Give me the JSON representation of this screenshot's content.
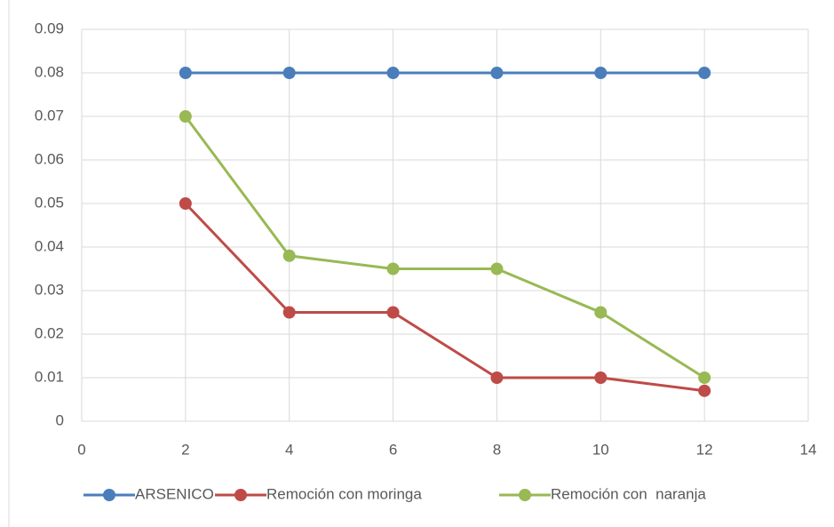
{
  "chart_data": {
    "type": "line",
    "x": [
      2,
      4,
      6,
      8,
      10,
      12
    ],
    "series": [
      {
        "name": "ARSENICO",
        "color": "#4a7ebb",
        "values": [
          0.08,
          0.08,
          0.08,
          0.08,
          0.08,
          0.08
        ]
      },
      {
        "name": "Remoción con moringa",
        "color": "#be4b48",
        "values": [
          0.05,
          0.025,
          0.025,
          0.01,
          0.01,
          0.007
        ]
      },
      {
        "name": "Remoción con  naranja",
        "color": "#98b954",
        "values": [
          0.07,
          0.038,
          0.035,
          0.035,
          0.025,
          0.01
        ]
      }
    ],
    "xlim": [
      0,
      14
    ],
    "xticks": [
      0,
      2,
      4,
      6,
      8,
      10,
      12,
      14
    ],
    "ylim": [
      0,
      0.09
    ],
    "yticks": [
      0,
      0.01,
      0.02,
      0.03,
      0.04,
      0.05,
      0.06,
      0.07,
      0.08,
      0.09
    ],
    "grid": true,
    "legend": "bottom"
  }
}
